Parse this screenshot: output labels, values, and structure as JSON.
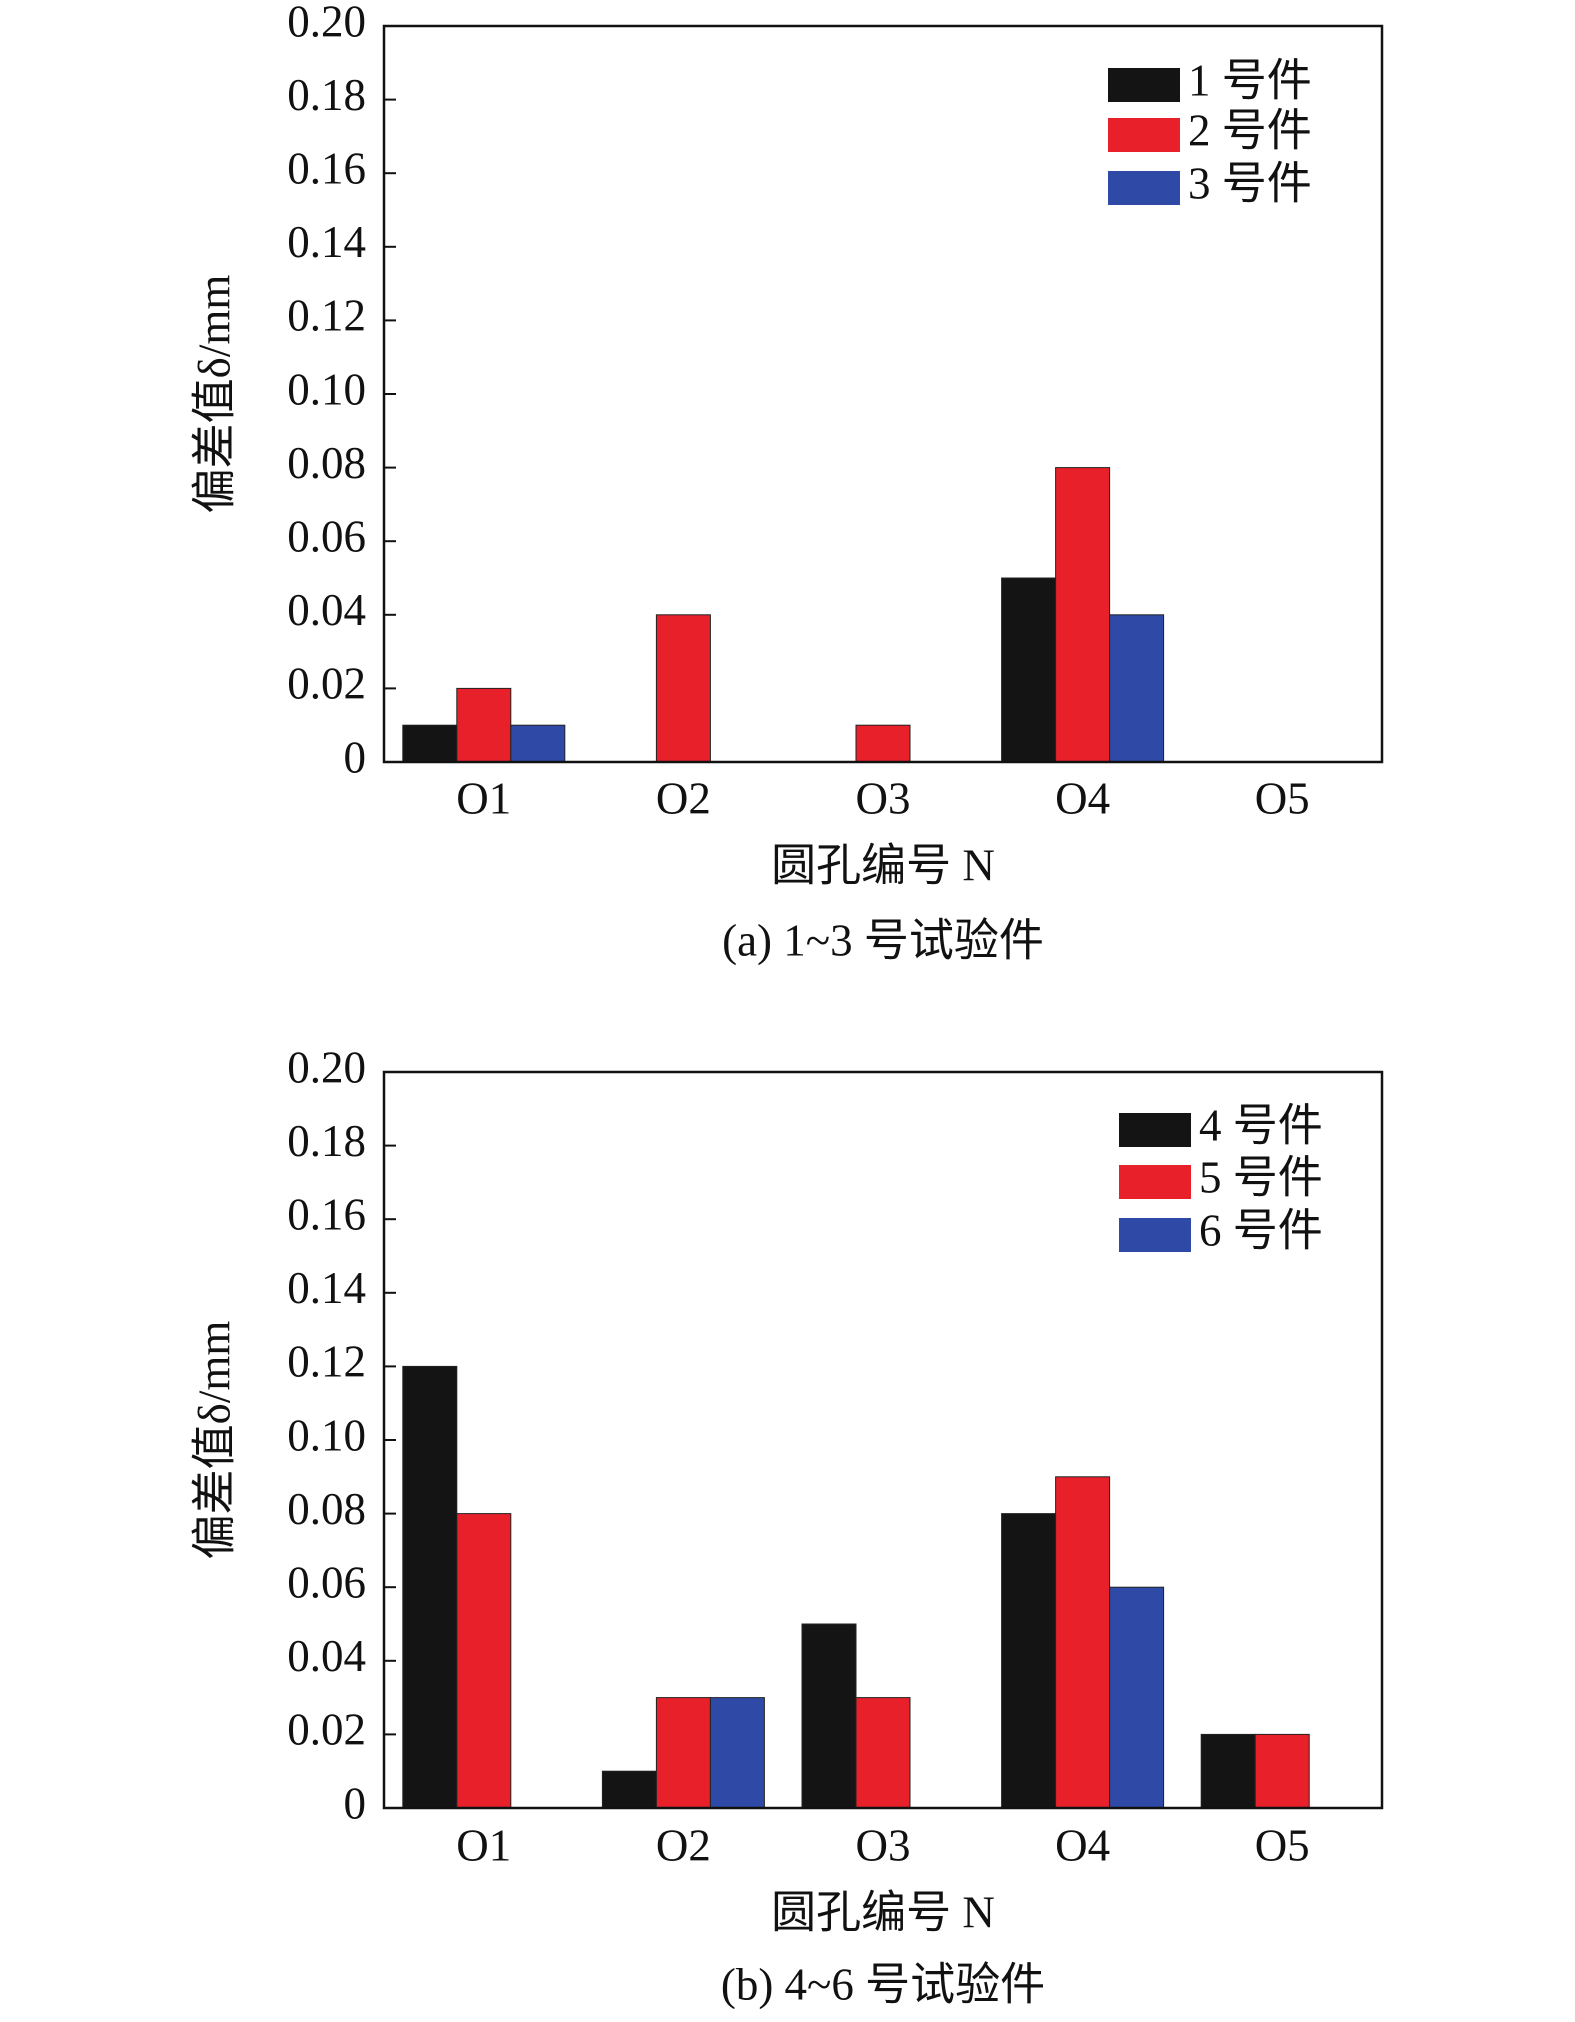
{
  "chart_data": [
    {
      "type": "bar",
      "x_label": "圆孔编号 N",
      "y_label": "偏差值δ/mm",
      "caption": "(a) 1~3 号试验件",
      "categories": [
        "O1",
        "O2",
        "O3",
        "O4",
        "O5"
      ],
      "series": [
        {
          "name": "1 号件",
          "color": "#141414",
          "values": [
            0.01,
            0,
            0,
            0.05,
            0
          ]
        },
        {
          "name": "2 号件",
          "color": "#e8202a",
          "values": [
            0.02,
            0.04,
            0.01,
            0.08,
            0
          ]
        },
        {
          "name": "3 号件",
          "color": "#2f4aa6",
          "values": [
            0.01,
            0,
            0,
            0.04,
            0
          ]
        }
      ],
      "ylim": [
        0,
        0.2
      ],
      "yticks": [
        0,
        0.02,
        0.04,
        0.06,
        0.08,
        {
          "value": 0.1,
          "label": "0.10"
        },
        0.12,
        0.14,
        0.16,
        0.18,
        {
          "value": 0.2,
          "label": "0.20"
        }
      ],
      "legend": "upper right"
    },
    {
      "type": "bar",
      "x_label": "圆孔编号 N",
      "y_label": "偏差值δ/mm",
      "caption": "(b) 4~6 号试验件",
      "categories": [
        "O1",
        "O2",
        "O3",
        "O4",
        "O5"
      ],
      "series": [
        {
          "name": "4 号件",
          "color": "#141414",
          "values": [
            0.12,
            0.01,
            0.05,
            0.08,
            0.02
          ]
        },
        {
          "name": "5 号件",
          "color": "#e8202a",
          "values": [
            0.08,
            0.03,
            0.03,
            0.09,
            0.02
          ]
        },
        {
          "name": "6 号件",
          "color": "#2f4aa6",
          "values": [
            0,
            0.03,
            0,
            0.06,
            0
          ]
        }
      ],
      "ylim": [
        0,
        0.2
      ],
      "yticks": [
        0,
        0.02,
        0.04,
        0.06,
        0.08,
        {
          "value": 0.1,
          "label": "0.10"
        },
        0.12,
        0.14,
        0.16,
        0.18,
        {
          "value": 0.2,
          "label": "0.20"
        }
      ],
      "legend": "upper right"
    }
  ]
}
